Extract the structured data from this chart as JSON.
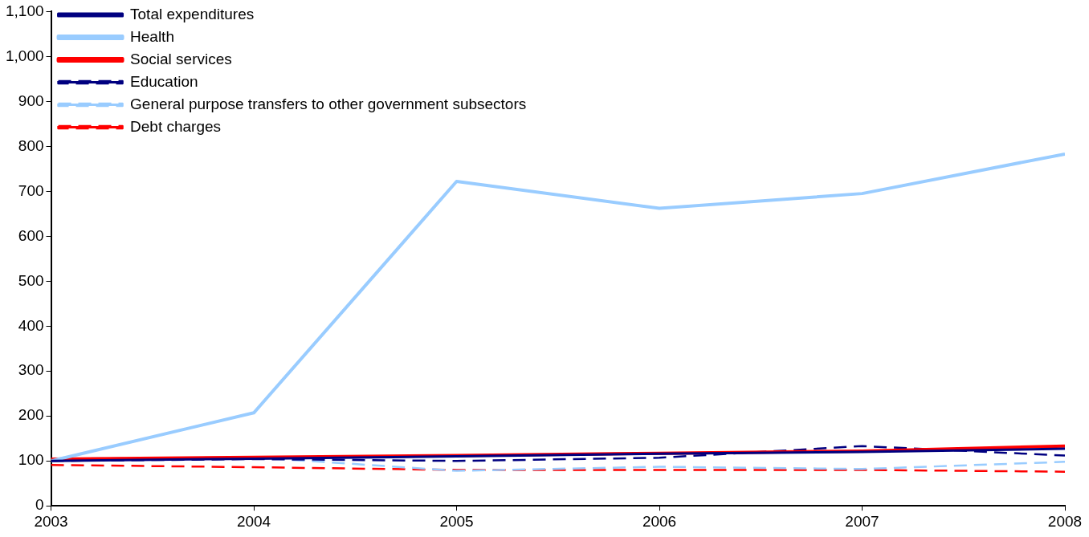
{
  "chart_data": {
    "type": "line",
    "x": [
      2003,
      2004,
      2005,
      2006,
      2007,
      2008
    ],
    "xlim": [
      2003,
      2008
    ],
    "xticks": [
      2003,
      2004,
      2005,
      2006,
      2007,
      2008
    ],
    "ylim": [
      0,
      1100
    ],
    "yticks": [
      {
        "value": 0,
        "label": "0"
      },
      {
        "value": 100,
        "label": "100"
      },
      {
        "value": 200,
        "label": "200"
      },
      {
        "value": 300,
        "label": "300"
      },
      {
        "value": 400,
        "label": "400"
      },
      {
        "value": 500,
        "label": "500"
      },
      {
        "value": 600,
        "label": "600"
      },
      {
        "value": 700,
        "label": "700"
      },
      {
        "value": 800,
        "label": "800"
      },
      {
        "value": 900,
        "label": "900"
      },
      {
        "value": 1000,
        "label": "1,000"
      },
      {
        "value": 1100,
        "label": "1,100"
      }
    ],
    "grid": false,
    "legend": "top left",
    "marker": "none",
    "series": [
      {
        "name": "Total expenditures",
        "color": "#000080",
        "line_style": "solid",
        "values": [
          100,
          105,
          110,
          116,
          120,
          127
        ]
      },
      {
        "name": "Health",
        "color": "#99ccff",
        "line_style": "solid",
        "values": [
          100,
          207,
          722,
          662,
          695,
          783
        ]
      },
      {
        "name": "Social services",
        "color": "#ff0000",
        "line_style": "solid",
        "values": [
          104,
          108,
          112,
          117,
          122,
          133
        ]
      },
      {
        "name": "Education",
        "color": "#000080",
        "line_style": "dashed",
        "values": [
          100,
          104,
          100,
          107,
          133,
          112
        ]
      },
      {
        "name": "General purpose transfers to other government subsectors",
        "color": "#99ccff",
        "line_style": "dashed",
        "values": [
          105,
          108,
          78,
          87,
          82,
          98
        ]
      },
      {
        "name": "Debt charges",
        "color": "#ff0000",
        "line_style": "dashed",
        "values": [
          91,
          86,
          80,
          80,
          80,
          76
        ]
      }
    ]
  }
}
